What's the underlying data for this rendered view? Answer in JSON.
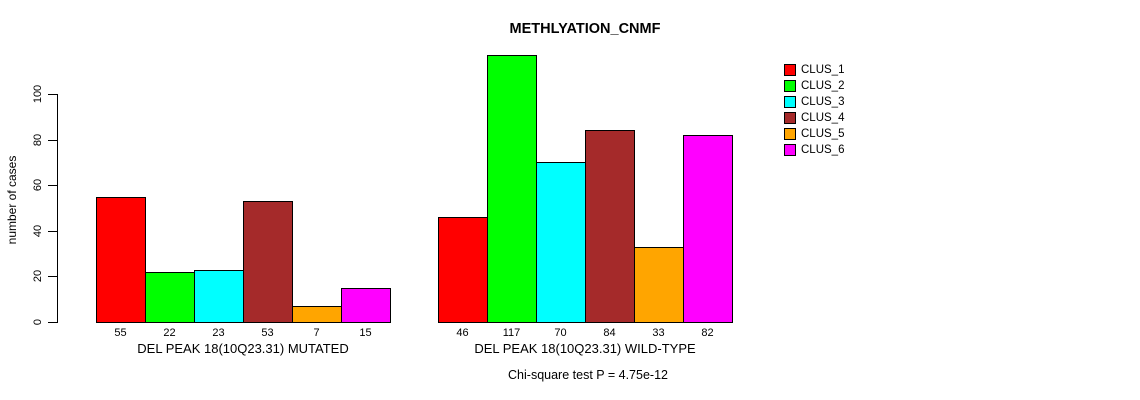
{
  "chart_data": {
    "type": "bar",
    "title": "METHLYATION_CNMF",
    "ylabel": "number of cases",
    "xlabel": "",
    "yticks": [
      0,
      20,
      40,
      60,
      80,
      100
    ],
    "ylim": [
      0,
      120
    ],
    "grid": false,
    "bar_value_labels_shown": true,
    "categories": [
      "DEL PEAK 18(10Q23.31) MUTATED",
      "DEL PEAK 18(10Q23.31) WILD-TYPE"
    ],
    "series": [
      {
        "name": "CLUS_1",
        "color": "#ff0000",
        "values": [
          55,
          46
        ]
      },
      {
        "name": "CLUS_2",
        "color": "#00ff00",
        "values": [
          22,
          117
        ]
      },
      {
        "name": "CLUS_3",
        "color": "#00ffff",
        "values": [
          23,
          70
        ]
      },
      {
        "name": "CLUS_4",
        "color": "#a52a2a",
        "values": [
          53,
          84
        ]
      },
      {
        "name": "CLUS_5",
        "color": "#ffa500",
        "values": [
          7,
          33
        ]
      },
      {
        "name": "CLUS_6",
        "color": "#ff00ff",
        "values": [
          15,
          82
        ]
      }
    ],
    "legend": {
      "position": "right",
      "entries": [
        "CLUS_1",
        "CLUS_2",
        "CLUS_3",
        "CLUS_4",
        "CLUS_5",
        "CLUS_6"
      ]
    },
    "annotation": "Chi-square test P = 4.75e-12"
  },
  "colors": {
    "background": "#ffffff",
    "axis": "#000000",
    "text": "#000000"
  }
}
